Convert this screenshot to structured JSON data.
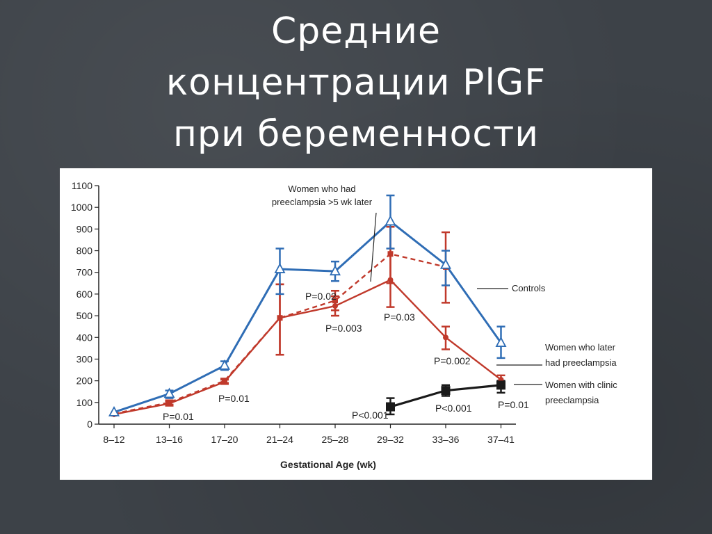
{
  "slide": {
    "title_lines": [
      "Средние",
      "концентрации PlGF",
      "при беременности"
    ]
  },
  "colors": {
    "background": "#3d4248",
    "controls": "#2f6db5",
    "preeclampsia_later": "#c0392b",
    "clinic": "#1a1a1a"
  },
  "chart_data": {
    "type": "line",
    "xlabel": "Gestational Age (wk)",
    "ylabel": "",
    "categories": [
      "8–12",
      "13–16",
      "17–20",
      "21–24",
      "25–28",
      "29–32",
      "33–36",
      "37–41"
    ],
    "y_ticks": [
      0,
      100,
      200,
      300,
      400,
      500,
      600,
      700,
      800,
      900,
      1000,
      1100
    ],
    "ylim": [
      0,
      1100
    ],
    "grid": false,
    "series": [
      {
        "name": "Controls",
        "color": "#2f6db5",
        "marker": "triangle-open",
        "line": "solid",
        "values": [
          55,
          140,
          270,
          715,
          705,
          935,
          735,
          375
        ],
        "err": [
          [
            55,
            55
          ],
          [
            120,
            155
          ],
          [
            250,
            290
          ],
          [
            600,
            810
          ],
          [
            660,
            750
          ],
          [
            810,
            1055
          ],
          [
            640,
            800
          ],
          [
            305,
            450
          ]
        ]
      },
      {
        "name": "Women who later had preeclampsia",
        "color": "#c0392b",
        "marker": "circle",
        "line": "solid",
        "values": [
          45,
          95,
          195,
          490,
          545,
          665,
          400,
          205
        ],
        "err": [
          [
            45,
            45
          ],
          [
            85,
            105
          ],
          [
            185,
            205
          ],
          [
            320,
            645
          ],
          [
            500,
            590
          ],
          [
            540,
            910
          ],
          [
            345,
            450
          ],
          [
            190,
            225
          ]
        ]
      },
      {
        "name": "Women who had preeclampsia >5 wk later",
        "color": "#c0392b",
        "marker": "square",
        "line": "dashed",
        "values": [
          48,
          100,
          200,
          490,
          570,
          785,
          725,
          null
        ],
        "err": [
          [
            48,
            48
          ],
          [
            90,
            110
          ],
          [
            190,
            210
          ],
          [
            320,
            645
          ],
          [
            525,
            615
          ],
          [
            650,
            910
          ],
          [
            560,
            885
          ],
          null
        ]
      },
      {
        "name": "Women with clinic preeclampsia",
        "color": "#1a1a1a",
        "marker": "square",
        "line": "solid",
        "values": [
          null,
          null,
          null,
          null,
          null,
          80,
          155,
          180
        ],
        "err": [
          null,
          null,
          null,
          null,
          null,
          [
            45,
            120
          ],
          [
            130,
            180
          ],
          [
            145,
            200
          ]
        ]
      }
    ],
    "annotations": [
      "Women who had preeclampsia >5 wk later",
      "Controls",
      "Women who later had preeclampsia",
      "Women with clinic preeclampsia"
    ],
    "p_values": [
      "P=0.01",
      "P=0.01",
      "P=0.02",
      "P=0.003",
      "P=0.03",
      "P<0.001",
      "P=0.002",
      "P<0.001",
      "P=0.01"
    ]
  }
}
